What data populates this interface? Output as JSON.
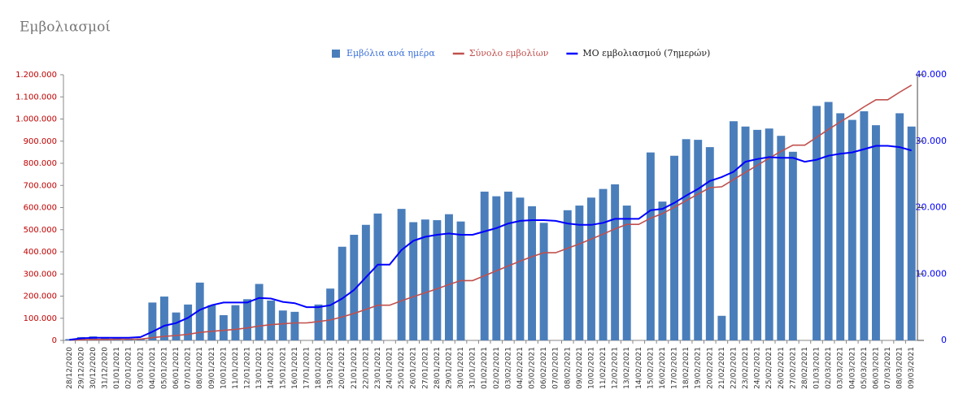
{
  "chart_data": {
    "type": "combo",
    "title": "Εμβολιασμοί",
    "categories": [
      "28/12/2020",
      "29/12/2020",
      "30/12/2020",
      "31/12/2020",
      "01/01/2021",
      "02/01/2021",
      "03/01/2021",
      "04/01/2021",
      "05/01/2021",
      "06/01/2021",
      "07/01/2021",
      "08/01/2021",
      "09/01/2021",
      "10/01/2021",
      "11/01/2021",
      "12/01/2021",
      "13/01/2021",
      "14/01/2021",
      "15/01/2021",
      "16/01/2021",
      "17/01/2021",
      "18/01/2021",
      "19/01/2021",
      "20/01/2021",
      "21/01/2021",
      "22/01/2021",
      "23/01/2021",
      "24/01/2021",
      "25/01/2021",
      "26/01/2021",
      "27/01/2021",
      "28/01/2021",
      "29/01/2021",
      "30/01/2021",
      "31/01/2021",
      "01/02/2021",
      "02/02/2021",
      "03/02/2021",
      "04/02/2021",
      "05/02/2021",
      "06/02/2021",
      "07/02/2021",
      "08/02/2021",
      "09/02/2021",
      "10/02/2021",
      "11/02/2021",
      "12/02/2021",
      "13/02/2021",
      "14/02/2021",
      "15/02/2021",
      "16/02/2021",
      "17/02/2021",
      "18/02/2021",
      "19/02/2021",
      "20/02/2021",
      "21/02/2021",
      "22/02/2021",
      "23/02/2021",
      "24/02/2021",
      "25/02/2021",
      "26/02/2021",
      "27/02/2021",
      "28/02/2021",
      "01/03/2021",
      "02/03/2021",
      "03/03/2021",
      "04/03/2021",
      "05/03/2021",
      "06/03/2021",
      "07/03/2021",
      "08/03/2021",
      "09/03/2021"
    ],
    "series": [
      {
        "name": "Εμβόλια ανά ημέρα",
        "type": "bar",
        "axis": "y2",
        "color": "#4a7ebb",
        "values": [
          200,
          500,
          600,
          500,
          300,
          200,
          300,
          5700,
          6600,
          4200,
          5400,
          8700,
          5300,
          3800,
          5300,
          6200,
          8500,
          6000,
          4500,
          4300,
          0,
          5400,
          7800,
          14100,
          15900,
          17400,
          19100,
          0,
          19800,
          17800,
          18200,
          18100,
          19000,
          17900,
          0,
          22400,
          21700,
          22400,
          21500,
          20200,
          17700,
          0,
          19600,
          20300,
          21500,
          22800,
          23500,
          20300,
          0,
          28300,
          20900,
          27800,
          30300,
          30200,
          29100,
          3700,
          33000,
          32200,
          31700,
          31900,
          30800,
          28400,
          0,
          35300,
          35900,
          34200,
          33200,
          34500,
          32400,
          0,
          34200,
          32200
        ]
      },
      {
        "name": "Σύνολο εμβολίων",
        "type": "line",
        "color": "#c0504d",
        "values": [
          2000,
          3000,
          4000,
          4500,
          5000,
          5500,
          6000,
          12000,
          18000,
          22000,
          27000,
          36000,
          41000,
          45000,
          50000,
          56000,
          65000,
          71000,
          75000,
          79000,
          79000,
          85000,
          92000,
          106000,
          122000,
          140000,
          159000,
          159000,
          179000,
          197000,
          215000,
          233000,
          252000,
          270000,
          270000,
          292000,
          314000,
          336000,
          358000,
          378000,
          396000,
          396000,
          416000,
          436000,
          458000,
          480000,
          504000,
          524000,
          524000,
          552000,
          573000,
          601000,
          631000,
          661000,
          690000,
          694000,
          727000,
          759000,
          791000,
          823000,
          854000,
          882000,
          882000,
          917000,
          953000,
          987000,
          1020000,
          1055000,
          1087000,
          1087000,
          1121000,
          1153000
        ]
      },
      {
        "name": "ΜΟ εμβολιασμού (7ημερών)",
        "type": "line",
        "axis": "y2",
        "color": "#0000ff",
        "values": [
          100,
          300,
          400,
          400,
          400,
          400,
          500,
          1300,
          2200,
          2600,
          3400,
          4600,
          5300,
          5700,
          5700,
          5700,
          6400,
          6300,
          5800,
          5600,
          5000,
          5000,
          5300,
          6300,
          7600,
          9500,
          11400,
          11400,
          13600,
          15000,
          15600,
          15900,
          16100,
          15900,
          15900,
          16400,
          16900,
          17600,
          18000,
          18100,
          18100,
          18000,
          17600,
          17400,
          17400,
          17700,
          18300,
          18300,
          18300,
          19600,
          19800,
          20700,
          21800,
          22800,
          24000,
          24600,
          25400,
          26900,
          27300,
          27600,
          27500,
          27500,
          26900,
          27200,
          27800,
          28100,
          28300,
          28800,
          29300,
          29300,
          29100,
          28600
        ]
      }
    ],
    "ylim": [
      0,
      1200000
    ],
    "yticks": [
      0,
      {
        "value": 100000,
        "label": "100.000"
      },
      {
        "value": 200000,
        "label": "200.000"
      },
      {
        "value": 300000,
        "label": "300.000"
      },
      {
        "value": 400000,
        "label": "400.000"
      },
      {
        "value": 500000,
        "label": "500.000"
      },
      {
        "value": 600000,
        "label": "600.000"
      },
      {
        "value": 700000,
        "label": "700.000"
      },
      {
        "value": 800000,
        "label": "800.000"
      },
      {
        "value": 900000,
        "label": "900.000"
      },
      {
        "value": 1000000,
        "label": "1.000.000"
      },
      {
        "value": 1100000,
        "label": "1.100.000"
      },
      {
        "value": 1200000,
        "label": "1.200.000"
      }
    ],
    "y2lim": [
      0,
      40000
    ],
    "y2ticks": [
      0,
      {
        "value": 10000,
        "label": "10.000"
      },
      {
        "value": 20000,
        "label": "20.000"
      },
      {
        "value": 30000,
        "label": "30.000"
      },
      {
        "value": 40000,
        "label": "40.000"
      }
    ],
    "legend": "top"
  }
}
